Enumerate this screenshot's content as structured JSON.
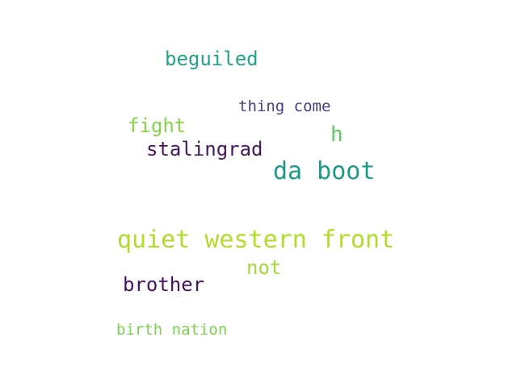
{
  "word_cloud": {
    "words": [
      {
        "text": "beguiled",
        "color": "#23a48a"
      },
      {
        "text": "thing come",
        "color": "#443d83"
      },
      {
        "text": "fight",
        "color": "#86d549"
      },
      {
        "text": "h",
        "color": "#5cc863"
      },
      {
        "text": "stalingrad",
        "color": "#46185e"
      },
      {
        "text": "da boot",
        "color": "#1f9a8a"
      },
      {
        "text": "quiet western front",
        "color": "#b2dc2b"
      },
      {
        "text": "not",
        "color": "#a2da37"
      },
      {
        "text": "brother",
        "color": "#44135c"
      },
      {
        "text": "birth nation",
        "color": "#7ad151"
      }
    ]
  }
}
